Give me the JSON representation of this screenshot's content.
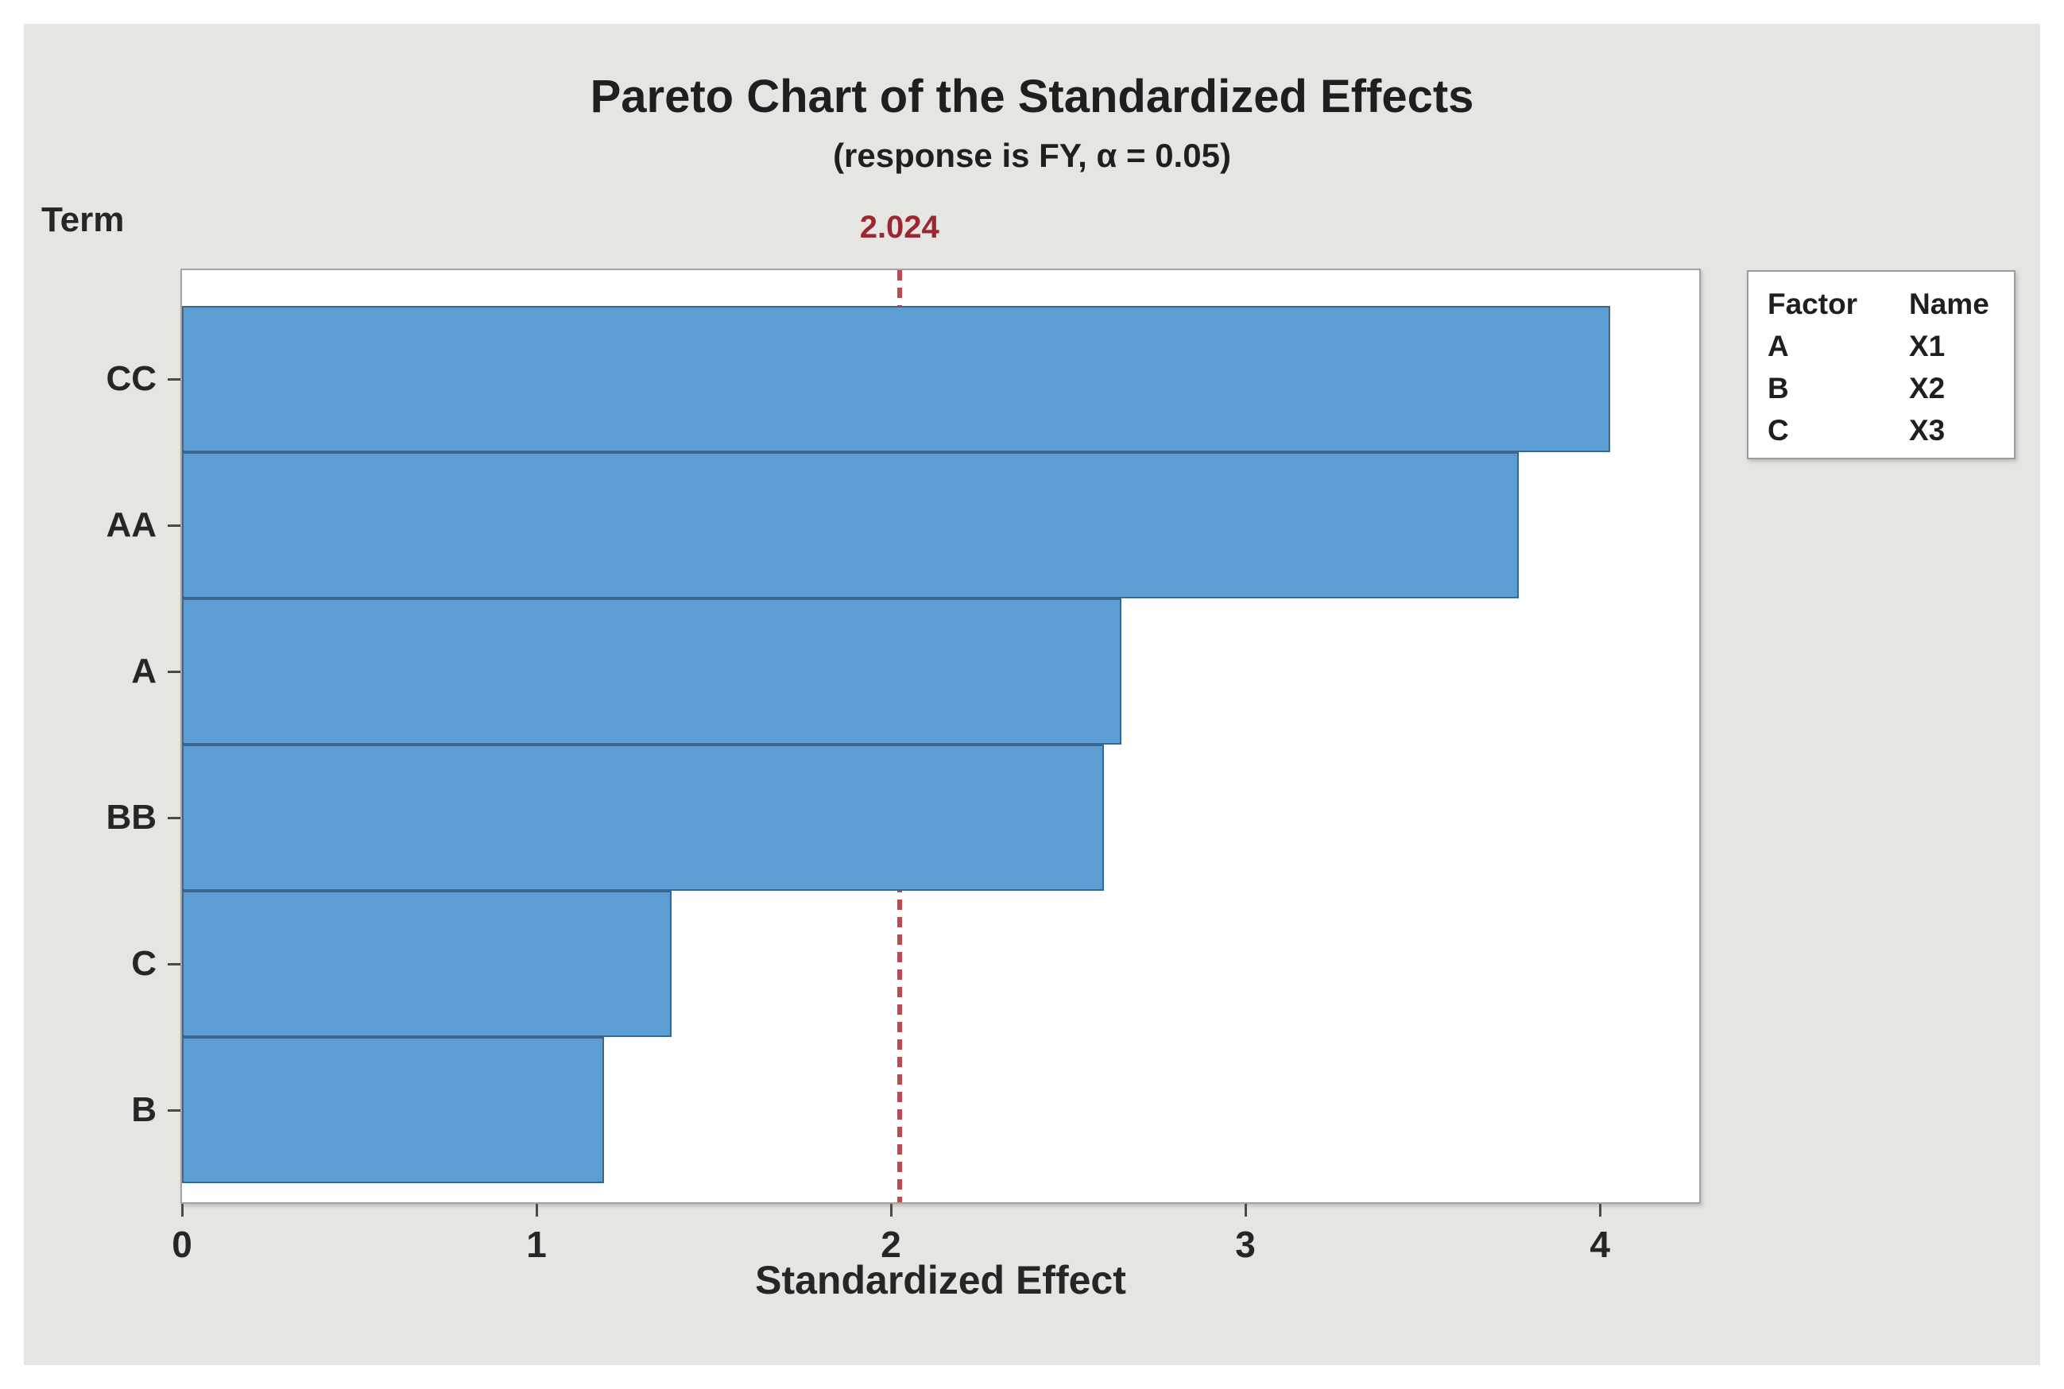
{
  "chart": {
    "title": "Pareto Chart of the Standardized Effects",
    "subtitle": "(response is FY, α = 0.05)",
    "y_axis_title": "Term",
    "x_axis_title": "Standardized Effect",
    "reference_line_label": "2.024"
  },
  "chart_data": {
    "type": "bar",
    "orientation": "horizontal",
    "title": "Pareto Chart of the Standardized Effects",
    "subtitle": "(response is FY, α = 0.05)",
    "xlabel": "Standardized Effect",
    "ylabel": "Term",
    "categories": [
      "CC",
      "AA",
      "A",
      "BB",
      "C",
      "B"
    ],
    "values": [
      4.03,
      3.77,
      2.65,
      2.6,
      1.38,
      1.19
    ],
    "reference_line": 2.024,
    "reference_line_label": "2.024",
    "x_ticks": [
      0,
      1,
      2,
      3,
      4
    ],
    "xlim": [
      0,
      4.28
    ],
    "grid": false,
    "legend": {
      "position": "right",
      "headers": [
        "Factor",
        "Name"
      ],
      "rows": [
        [
          "A",
          "X1"
        ],
        [
          "B",
          "X2"
        ],
        [
          "C",
          "X3"
        ]
      ]
    },
    "colors": {
      "bar_fill": "#5c9ed4",
      "bar_border": "#3a6790",
      "reference_line": "#c24850",
      "reference_label": "#9c2631",
      "panel_background": "#e6e5e2",
      "plot_background": "#ffffff"
    }
  }
}
